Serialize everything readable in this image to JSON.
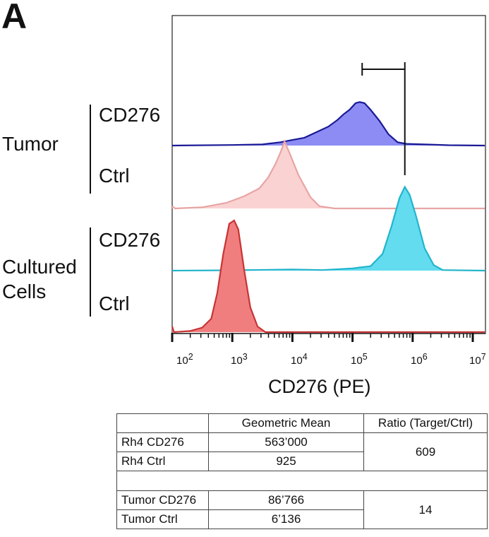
{
  "panel_label": "A",
  "groups": [
    {
      "name": "Tumor",
      "rows": [
        "CD276",
        "Ctrl"
      ]
    },
    {
      "name_lines": [
        "Cultured",
        "Cells"
      ],
      "rows": [
        "CD276",
        "Ctrl"
      ]
    }
  ],
  "chart_data": {
    "type": "area",
    "xlabel": "CD276 (PE)",
    "xscale": "log",
    "xlim_log10": [
      2,
      7.2
    ],
    "x_ticks": [
      {
        "base": "10",
        "exp": "2"
      },
      {
        "base": "10",
        "exp": "3"
      },
      {
        "base": "10",
        "exp": "4"
      },
      {
        "base": "10",
        "exp": "5"
      },
      {
        "base": "10",
        "exp": "6"
      },
      {
        "base": "10",
        "exp": "7"
      }
    ],
    "layout": "stacked offset histograms",
    "gate_bracket_log10": [
      5.16,
      5.87
    ],
    "series": [
      {
        "group": "Tumor",
        "label": "CD276",
        "stroke": "#1a1a96",
        "fill": "#8c8cf4",
        "points": [
          [
            2,
            0
          ],
          [
            3,
            0.5
          ],
          [
            3.5,
            1
          ],
          [
            3.8,
            3
          ],
          [
            4.0,
            5
          ],
          [
            4.2,
            7
          ],
          [
            4.4,
            12
          ],
          [
            4.6,
            17
          ],
          [
            4.75,
            23
          ],
          [
            4.85,
            28
          ],
          [
            4.95,
            32
          ],
          [
            5.05,
            38
          ],
          [
            5.12,
            39
          ],
          [
            5.2,
            38
          ],
          [
            5.3,
            32
          ],
          [
            5.45,
            22
          ],
          [
            5.6,
            10
          ],
          [
            5.75,
            3
          ],
          [
            5.9,
            1.5
          ],
          [
            6.2,
            1
          ],
          [
            6.6,
            0.3
          ],
          [
            7.2,
            0
          ]
        ]
      },
      {
        "group": "Tumor",
        "label": "Ctrl",
        "stroke": "#e8a4a4",
        "fill": "#fad2d2",
        "points": [
          [
            2,
            2
          ],
          [
            2.05,
            0
          ],
          [
            2.5,
            1
          ],
          [
            2.9,
            5
          ],
          [
            3.2,
            11
          ],
          [
            3.45,
            18
          ],
          [
            3.6,
            28
          ],
          [
            3.72,
            40
          ],
          [
            3.8,
            50
          ],
          [
            3.87,
            60
          ],
          [
            3.95,
            50
          ],
          [
            4.1,
            30
          ],
          [
            4.3,
            10
          ],
          [
            4.45,
            2
          ],
          [
            4.7,
            0
          ],
          [
            7.2,
            0
          ]
        ]
      },
      {
        "group": "Cultured Cells",
        "label": "CD276",
        "stroke": "#22b4cc",
        "fill": "#62dcee",
        "points": [
          [
            2,
            0
          ],
          [
            3,
            0.3
          ],
          [
            4,
            1
          ],
          [
            4.5,
            0.5
          ],
          [
            5.0,
            2
          ],
          [
            5.3,
            4
          ],
          [
            5.5,
            15
          ],
          [
            5.65,
            40
          ],
          [
            5.78,
            65
          ],
          [
            5.87,
            75
          ],
          [
            5.95,
            68
          ],
          [
            6.05,
            50
          ],
          [
            6.2,
            20
          ],
          [
            6.35,
            5
          ],
          [
            6.5,
            0.5
          ],
          [
            7.2,
            0
          ]
        ]
      },
      {
        "group": "Cultured Cells",
        "label": "Ctrl",
        "stroke": "#c83434",
        "fill": "#f07e7e",
        "points": [
          [
            2,
            5
          ],
          [
            2.03,
            0
          ],
          [
            2.3,
            1
          ],
          [
            2.5,
            4
          ],
          [
            2.65,
            12
          ],
          [
            2.75,
            35
          ],
          [
            2.85,
            70
          ],
          [
            2.95,
            97
          ],
          [
            3.03,
            100
          ],
          [
            3.1,
            92
          ],
          [
            3.2,
            55
          ],
          [
            3.3,
            22
          ],
          [
            3.42,
            5
          ],
          [
            3.55,
            0
          ],
          [
            7.2,
            0
          ]
        ]
      }
    ]
  },
  "table": {
    "headers": [
      "",
      "Geometric Mean",
      "Ratio (Target/Ctrl)"
    ],
    "rows": [
      {
        "label": "Rh4 CD276",
        "mean": "563’000"
      },
      {
        "label": "Rh4 Ctrl",
        "mean": "925"
      },
      {
        "label": "Tumor CD276",
        "mean": "86’766"
      },
      {
        "label": "Tumor Ctrl",
        "mean": "6’136"
      }
    ],
    "ratios": [
      "609",
      "14"
    ]
  }
}
